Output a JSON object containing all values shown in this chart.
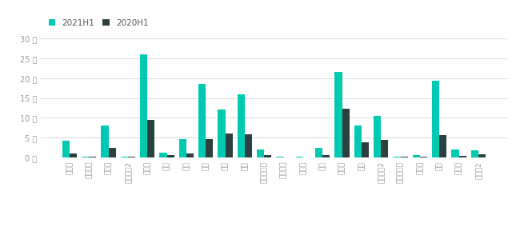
{
  "categories": [
    "爱尔兰",
    "撒沙尼亚",
    "奥地利",
    "保加利亚2",
    "比利时",
    "冰岛",
    "波兰",
    "丹麦",
    "芬兰",
    "荷兰",
    "捷克共和国",
    "克罗地亚",
    "卢森堡",
    "挪威",
    "葡萄牙",
    "瑞士",
    "斯洛伐克2",
    "斯洛文尼亚",
    "西班牙",
    "希腊",
    "纽芬利",
    "纽芬利2"
  ],
  "values_2021": [
    4.3,
    0.2,
    8.0,
    0.2,
    26.0,
    1.3,
    4.6,
    18.5,
    12.0,
    16.0,
    2.0,
    0.1,
    0.1,
    2.4,
    21.5,
    8.0,
    10.5,
    0.2,
    0.6,
    19.3,
    2.0,
    1.8
  ],
  "values_2020": [
    1.0,
    0.1,
    2.5,
    0.1,
    9.5,
    0.7,
    1.1,
    4.6,
    6.0,
    5.8,
    0.6,
    0.0,
    0.0,
    0.7,
    12.2,
    3.8,
    4.4,
    0.1,
    0.2,
    5.6,
    0.4,
    0.8
  ],
  "color_2021": "#00c9b1",
  "color_2020": "#2d4040",
  "legend_2021": "2021H1",
  "legend_2020": "2020H1",
  "yticks": [
    0,
    5,
    10,
    15,
    20,
    25,
    30
  ],
  "ytick_labels": [
    "0 千",
    "5 千",
    "10 千",
    "15 千",
    "20 千",
    "25 千",
    "30 千"
  ],
  "ylim": [
    0,
    32
  ],
  "background_color": "#ffffff",
  "grid_color": "#dddddd"
}
